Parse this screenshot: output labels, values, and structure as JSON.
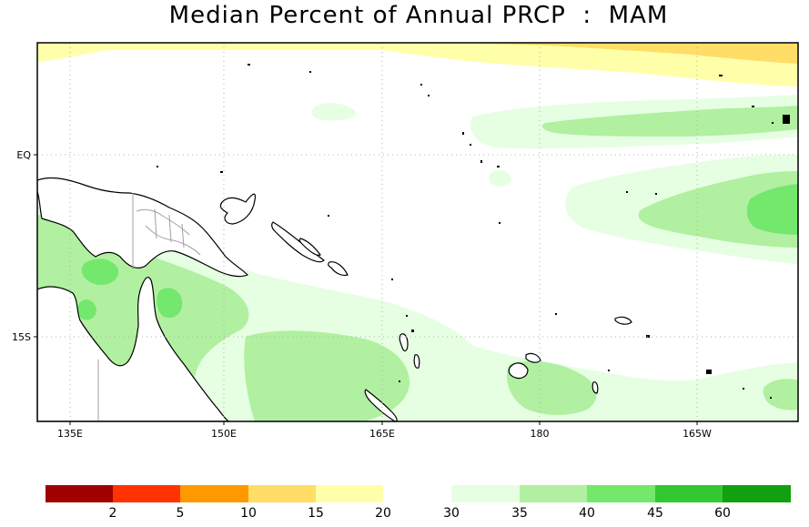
{
  "title": "Median Percent of Annual PRCP  :  MAM",
  "axes": {
    "x_ticks": [
      "135E",
      "150E",
      "165E",
      "180",
      "165W"
    ],
    "y_ticks": [
      "EQ",
      "15S"
    ]
  },
  "legend": {
    "dry": {
      "labels": [
        "2",
        "5",
        "10",
        "15",
        "20"
      ],
      "colors": [
        "#a00000",
        "#ff3300",
        "#ff9900",
        "#ffdd66",
        "#ffffaa"
      ]
    },
    "wet": {
      "labels": [
        "30",
        "35",
        "40",
        "45",
        "60"
      ],
      "colors": [
        "#e6ffe2",
        "#b0f0a0",
        "#74e86c",
        "#34c830",
        "#10a010"
      ]
    }
  },
  "colors": {
    "coast": "#000000",
    "borders": "#a0a0a0",
    "grid": "#b0b0b0"
  }
}
